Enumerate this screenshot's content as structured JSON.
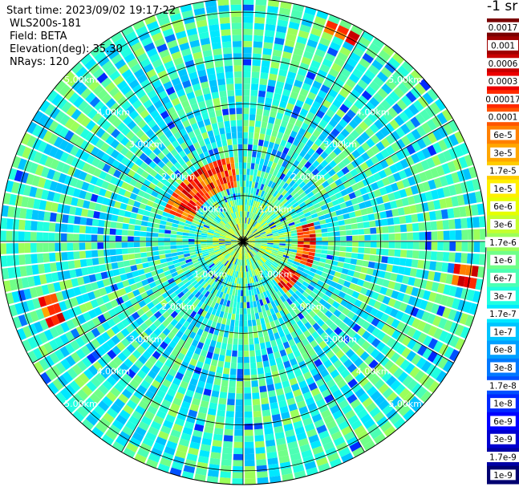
{
  "header": {
    "start_time": "Start time: 2023/09/02 19:17:22",
    "instrument": "WLS200s-181",
    "field": "Field: BETA",
    "elevation": "Elevation(deg): 35.30",
    "nrays": "NRays: 120"
  },
  "colorbar": {
    "title": "-1 sr",
    "labels": [
      "0.0017",
      "0.001",
      "0.0006",
      "0.0003",
      "0.00017",
      "0.0001",
      "6e-5",
      "3e-5",
      "1.7e-5",
      "1e-5",
      "6e-6",
      "3e-6",
      "1.7e-6",
      "1e-6",
      "6e-7",
      "3e-7",
      "1.7e-7",
      "1e-7",
      "6e-8",
      "3e-8",
      "1.7e-8",
      "1e-8",
      "6e-9",
      "3e-9",
      "1.7e-9",
      "1e-9"
    ],
    "colors": [
      "#7a0000",
      "#a00000",
      "#c80000",
      "#ec0000",
      "#ff2a00",
      "#ff5500",
      "#ff8000",
      "#ffa600",
      "#ffcc00",
      "#fff000",
      "#e6ff00",
      "#c4ff2e",
      "#9cff5a",
      "#70ff88",
      "#4cffb4",
      "#20ffe0",
      "#00e8ff",
      "#00c4ff",
      "#00a0ff",
      "#0078ff",
      "#0050ff",
      "#0028ff",
      "#0000ff",
      "#0000d0",
      "#0000a4",
      "#000070"
    ]
  },
  "chart_data": {
    "type": "heatmap",
    "projection": "polar",
    "field": "BETA",
    "nrays": 120,
    "range_rings_km": [
      1,
      2,
      3,
      4,
      5
    ],
    "ring_labels": [
      "1.00km",
      "2.00km",
      "3.00km",
      "4.00km",
      "5.00km"
    ],
    "radial_lines_deg": [
      0,
      30,
      60,
      90,
      120,
      150,
      180,
      210,
      240,
      270,
      300,
      330
    ],
    "max_range_km": 5.3,
    "high_value_features": [
      {
        "azimuth_deg_range": [
          290,
          355
        ],
        "range_km": [
          1.15,
          1.9
        ],
        "level": "1e-4 to 6e-6"
      },
      {
        "azimuth_deg_range": [
          75,
          110
        ],
        "range_km": [
          1.2,
          1.6
        ],
        "level": "1e-4 to 6e-6"
      },
      {
        "azimuth_deg_range": [
          120,
          140
        ],
        "range_km": [
          1.0,
          1.4
        ],
        "level": "3e-5 to 6e-6"
      },
      {
        "azimuth_deg_range": [
          20,
          30
        ],
        "range_km": [
          4.9,
          5.2
        ],
        "level": "1e-5"
      },
      {
        "azimuth_deg_range": [
          97,
          103
        ],
        "range_km": [
          4.6,
          5.2
        ],
        "level": "1e-5"
      },
      {
        "azimuth_deg_range": [
          245,
          255
        ],
        "range_km": [
          4.2,
          4.7
        ],
        "level": "1e-5"
      }
    ]
  }
}
